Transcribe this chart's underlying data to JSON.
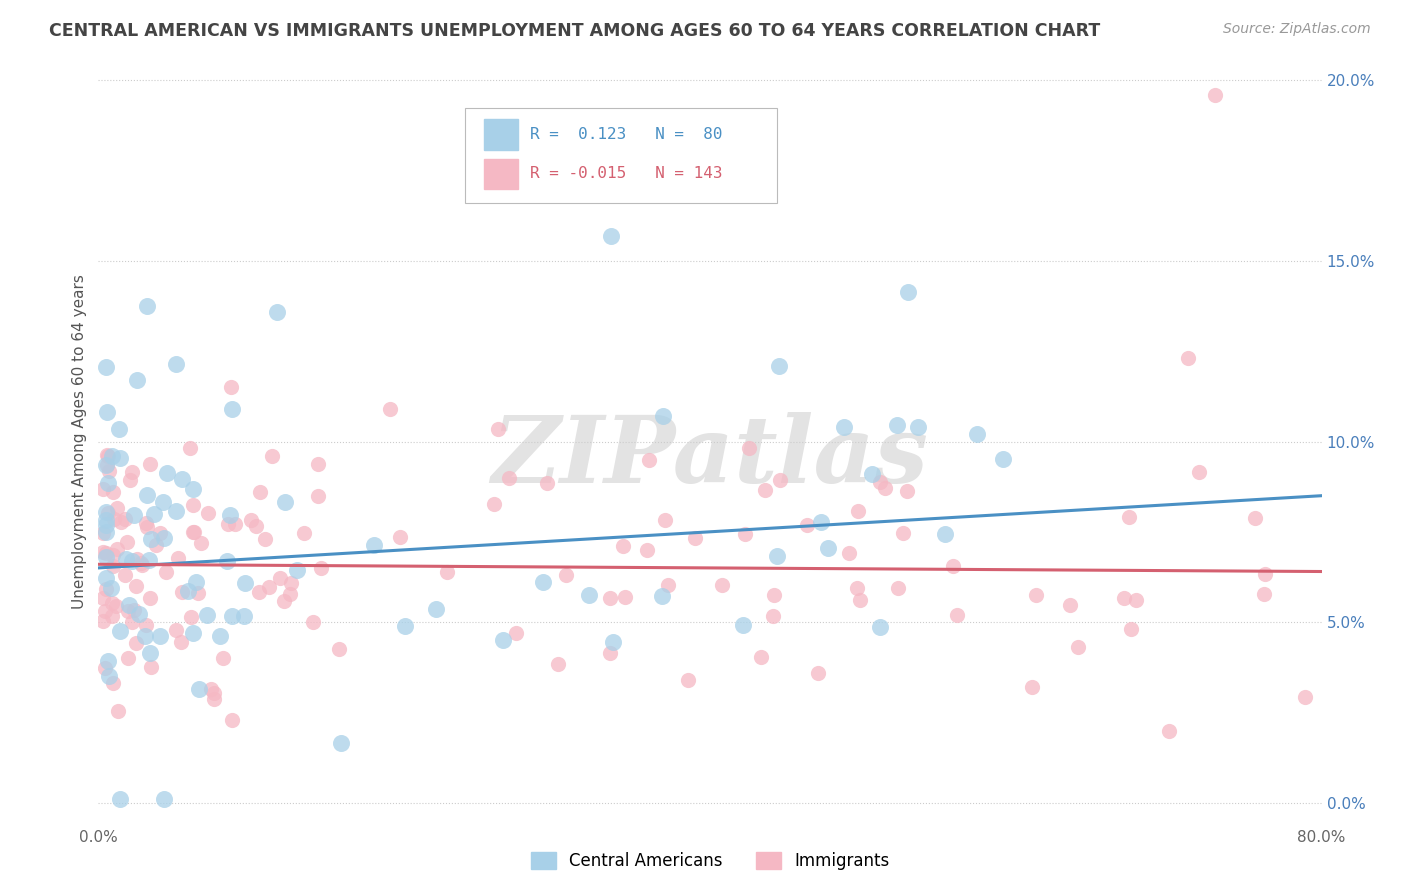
{
  "title": "CENTRAL AMERICAN VS IMMIGRANTS UNEMPLOYMENT AMONG AGES 60 TO 64 YEARS CORRELATION CHART",
  "source": "Source: ZipAtlas.com",
  "ylabel": "Unemployment Among Ages 60 to 64 years",
  "xlim": [
    0.0,
    0.8
  ],
  "ylim": [
    -0.005,
    0.205
  ],
  "yticks": [
    0.0,
    0.05,
    0.1,
    0.15,
    0.2
  ],
  "ytick_labels": [
    "0.0%",
    "5.0%",
    "10.0%",
    "15.0%",
    "20.0%"
  ],
  "xtick_labels_show": [
    "0.0%",
    "80.0%"
  ],
  "xtick_positions_show": [
    0.0,
    0.8
  ],
  "blue_R": 0.123,
  "blue_N": 80,
  "pink_R": -0.015,
  "pink_N": 143,
  "blue_color": "#A8D0E8",
  "pink_color": "#F5B8C4",
  "blue_line_color": "#4A90C4",
  "pink_line_color": "#D46070",
  "watermark_text": "ZIPatlas",
  "background_color": "#FFFFFF",
  "grid_color": "#CCCCCC",
  "title_color": "#444444",
  "source_color": "#999999",
  "legend_label_blue": "Central Americans",
  "legend_label_pink": "Immigrants",
  "blue_trend_y0": 0.065,
  "blue_trend_y1": 0.085,
  "pink_trend_y0": 0.066,
  "pink_trend_y1": 0.064
}
